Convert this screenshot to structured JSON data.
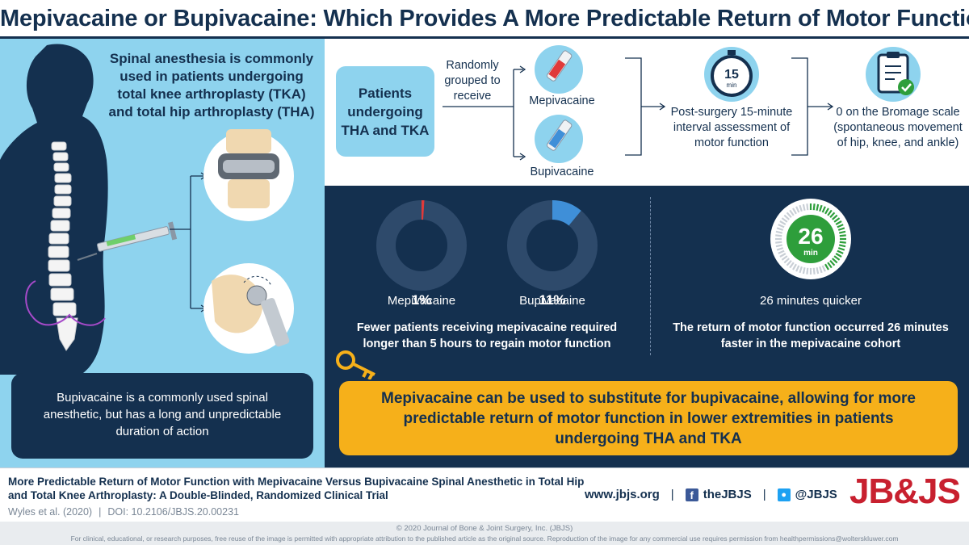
{
  "title": "Mepivacaine or Bupivacaine: Which Provides A More Predictable Return of Motor Function?",
  "left": {
    "intro": "Spinal anesthesia is commonly used in patients undergoing total knee arthroplasty (TKA) and total hip arthroplasty (THA)",
    "note": "Bupivacaine is a commonly used spinal anesthetic, but has a long and unpredictable duration of action"
  },
  "flow": {
    "patients": "Patients undergoing THA and TKA",
    "grouped": "Randomly grouped to receive",
    "drug_a": "Mepivacaine",
    "drug_b": "Bupivacaine",
    "timer_value": "15",
    "timer_unit": "min",
    "assessment": "Post-surgery 15-minute interval assessment of motor function",
    "outcome": "0 on the Bromage scale (spontaneous movement of hip, knee, and ankle)"
  },
  "results": {
    "donuts": [
      {
        "pct_label": "1%",
        "value": 1,
        "label": "Mepivacaine",
        "color": "#e03a3a"
      },
      {
        "pct_label": "11%",
        "value": 11,
        "label": "Bupivacaine",
        "color": "#3f8fd8"
      }
    ],
    "donut_caption": "Fewer patients receiving mepivacaine required longer than 5 hours to regain motor function",
    "timer_value": "26",
    "timer_unit": "min",
    "timer_label": "26 minutes quicker",
    "timer_caption": "The return of motor function occurred 26 minutes faster in the mepivacaine cohort"
  },
  "conclusion": "Mepivacaine can be used to substitute for bupivacaine, allowing for more predictable return of motor function in lower extremities in patients undergoing THA and TKA",
  "footer": {
    "article_title": "More Predictable Return of Motor Function with Mepivacaine Versus Bupivacaine Spinal Anesthetic in Total Hip and Total Knee Arthroplasty: A Double-Blinded, Randomized Clinical Trial",
    "authors": "Wyles et al. (2020)",
    "doi": "DOI: 10.2106/JBJS.20.00231",
    "website": "www.jbjs.org",
    "facebook": "theJBJS",
    "twitter": "@JBJS",
    "logo": "JB&JS",
    "copyright": "© 2020 Journal of Bone & Joint Surgery, Inc. (JBJS)",
    "reuse": "For clinical, educational, or research purposes, free reuse of the image is permitted with appropriate attribution to the published article as the original source. Reproduction of the image for any commercial use requires permission from healthpermissions@wolterskluwer.com"
  },
  "colors": {
    "navy": "#14304f",
    "light_blue": "#8ed3ee",
    "gold": "#f6b01a",
    "green": "#2e9e3b",
    "red": "#c8202f"
  }
}
